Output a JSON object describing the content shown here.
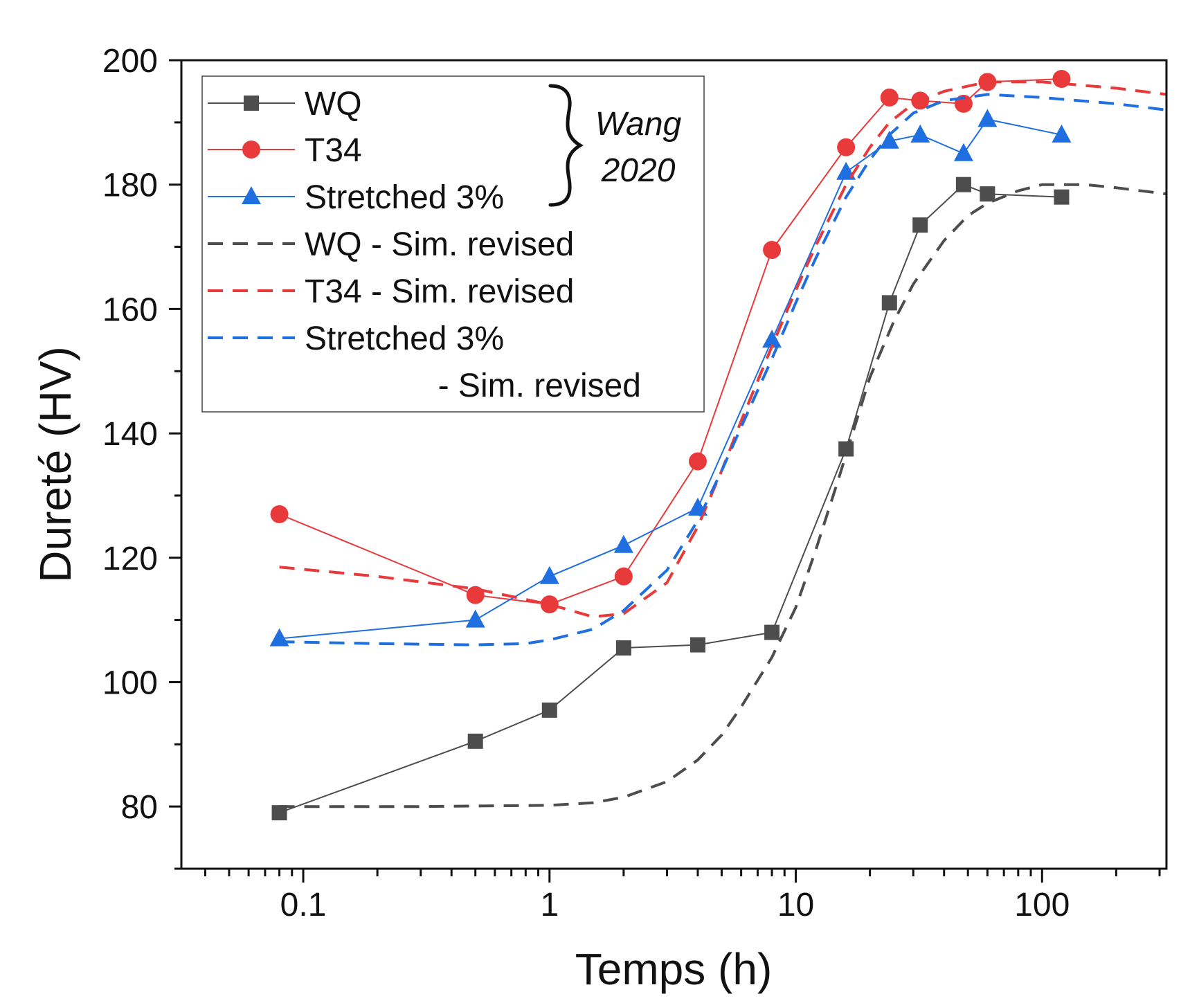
{
  "chart_data": {
    "type": "line",
    "xscale": "log",
    "xlabel": "Temps (h)",
    "ylabel": "Dureté (HV)",
    "xlim": [
      0.032,
      320
    ],
    "ylim": [
      70,
      200
    ],
    "xticks": [
      0.1,
      1,
      10,
      100
    ],
    "xtick_labels": [
      "0.1",
      "1",
      "10",
      "100"
    ],
    "yticks": [
      80,
      100,
      120,
      140,
      160,
      180,
      200
    ],
    "ytick_labels": [
      "80",
      "100",
      "120",
      "140",
      "160",
      "180",
      "200"
    ],
    "legend_position": "top-left",
    "annotation": {
      "line1": "Wang",
      "line2": "2020"
    },
    "series": [
      {
        "name": "WQ",
        "style": "solid",
        "marker": "square",
        "color": "#4d4d4d",
        "x": [
          0.08,
          0.5,
          1,
          2,
          4,
          8,
          16,
          24,
          32,
          48,
          60,
          120
        ],
        "y": [
          79,
          90.5,
          95.5,
          105.5,
          106,
          108,
          137.5,
          161,
          173.5,
          180,
          178.5,
          178
        ]
      },
      {
        "name": "T34",
        "style": "solid",
        "marker": "circle",
        "color": "#e8393b",
        "x": [
          0.08,
          0.5,
          1,
          2,
          4,
          8,
          16,
          24,
          32,
          48,
          60,
          120
        ],
        "y": [
          127,
          114,
          112.5,
          117,
          135.5,
          169.5,
          186,
          194,
          193.5,
          193,
          196.5,
          197
        ]
      },
      {
        "name": "Stretched 3%",
        "style": "solid",
        "marker": "triangle",
        "color": "#1f6fe0",
        "x": [
          0.08,
          0.5,
          1,
          2,
          4,
          8,
          16,
          24,
          32,
          48,
          60,
          120
        ],
        "y": [
          107,
          110,
          117,
          122,
          128,
          155,
          182,
          187,
          188,
          185,
          190.5,
          188
        ]
      },
      {
        "name": "WQ - Sim. revised",
        "style": "dashed",
        "color": "#4d4d4d",
        "x": [
          0.08,
          0.3,
          1,
          1.5,
          2,
          3,
          4,
          5,
          6,
          8,
          10,
          12,
          15,
          20,
          25,
          30,
          40,
          50,
          60,
          80,
          100,
          150,
          200,
          320
        ],
        "y": [
          80,
          80,
          80.2,
          80.6,
          81.5,
          84,
          87.5,
          91.5,
          96,
          104,
          112,
          121,
          133,
          149,
          158,
          164,
          171,
          175,
          177,
          179,
          180,
          180,
          179.5,
          178.5
        ]
      },
      {
        "name": "T34 - Sim. revised",
        "style": "dashed",
        "color": "#e8393b",
        "x": [
          0.08,
          0.2,
          0.5,
          1,
          1.5,
          2,
          3,
          4,
          5,
          6,
          8,
          10,
          12,
          16,
          20,
          24,
          30,
          40,
          60,
          100,
          200,
          320
        ],
        "y": [
          118.5,
          117,
          115,
          112.5,
          110.5,
          111,
          116,
          125,
          134,
          142,
          154,
          163,
          170,
          180,
          186,
          190,
          193,
          195,
          196.5,
          196.5,
          195.5,
          194.5
        ]
      },
      {
        "name": "Stretched 3%",
        "name_line2": "- Sim. revised",
        "style": "dashed",
        "color": "#1f6fe0",
        "x": [
          0.08,
          0.2,
          0.5,
          0.8,
          1,
          1.5,
          2,
          3,
          4,
          5,
          6,
          8,
          10,
          12,
          16,
          20,
          24,
          30,
          40,
          60,
          100,
          200,
          320
        ],
        "y": [
          106.5,
          106.2,
          106,
          106.2,
          106.8,
          108.5,
          111.5,
          118,
          126,
          134,
          141,
          152,
          161,
          168,
          178,
          184,
          188,
          191.5,
          193.5,
          194.5,
          194,
          193,
          192
        ]
      }
    ]
  }
}
